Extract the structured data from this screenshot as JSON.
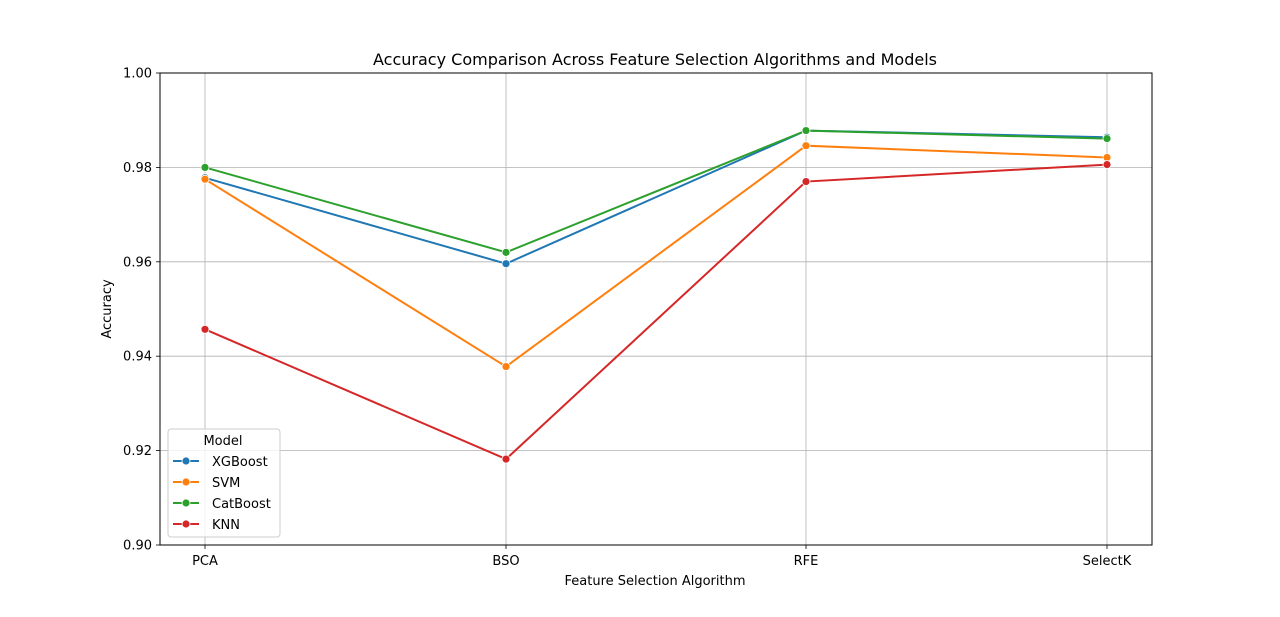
{
  "chart_data": {
    "type": "line",
    "title": "Accuracy Comparison Across Feature Selection Algorithms and Models",
    "xlabel": "Feature Selection Algorithm",
    "ylabel": "Accuracy",
    "categories": [
      "PCA",
      "BSO",
      "RFE",
      "SelectK"
    ],
    "ylim": [
      0.9,
      1.0
    ],
    "yticks": [
      "0.90",
      "0.92",
      "0.94",
      "0.96",
      "0.98",
      "1.00"
    ],
    "grid": true,
    "legend_title": "Model",
    "legend_position": "lower-left",
    "series": [
      {
        "name": "XGBoost",
        "color": "#1f77b4",
        "values": [
          0.9778,
          0.9596,
          0.9878,
          0.9864
        ]
      },
      {
        "name": "SVM",
        "color": "#ff7f0e",
        "values": [
          0.9775,
          0.9378,
          0.9846,
          0.9821
        ]
      },
      {
        "name": "CatBoost",
        "color": "#2ca02c",
        "values": [
          0.98,
          0.962,
          0.9878,
          0.9861
        ]
      },
      {
        "name": "KNN",
        "color": "#d62728",
        "values": [
          0.9457,
          0.9182,
          0.977,
          0.9806
        ]
      }
    ]
  }
}
